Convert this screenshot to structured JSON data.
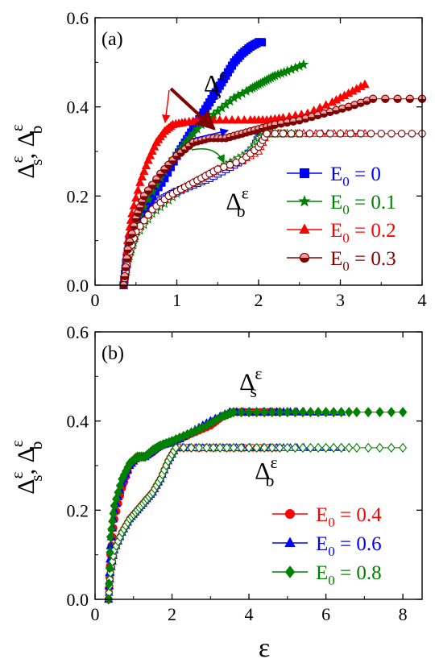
{
  "figure": {
    "x_axis_label": "ε"
  },
  "chart_data": [
    {
      "type": "scatter",
      "panel_label": "(a)",
      "xlim": [
        0,
        4
      ],
      "ylim": [
        0,
        0.6
      ],
      "xticks": [
        0,
        1,
        2,
        3,
        4
      ],
      "yticks": [
        0.0,
        0.2,
        0.4,
        0.6
      ],
      "ytick_labels": [
        "0.0",
        "0.2",
        "0.4",
        "0.6"
      ],
      "ylabel": {
        "main": "Δ",
        "sup1": "ε",
        "sub1": "s",
        "sep": ", ",
        "sup2": "ε",
        "sub2": "b"
      },
      "legend_position": "bottom-right",
      "annotations": [
        {
          "base": "Δ",
          "sub": "s",
          "sup": "ε",
          "x": 1.33,
          "y": 0.435
        },
        {
          "base": "Δ",
          "sub": "b",
          "sup": "ε",
          "x": 1.6,
          "y": 0.17
        }
      ],
      "series": [
        {
          "legend_base": "E",
          "legend_sub": "0",
          "legend_value": " = 0",
          "color": "#0000ff",
          "marker": "square",
          "s_points": [
            [
              0.35,
              0.0
            ],
            [
              0.38,
              0.05
            ],
            [
              0.42,
              0.1
            ],
            [
              0.5,
              0.14
            ],
            [
              0.6,
              0.17
            ],
            [
              0.7,
              0.2
            ],
            [
              0.85,
              0.24
            ],
            [
              1.0,
              0.29
            ],
            [
              1.1,
              0.32
            ],
            [
              1.2,
              0.35
            ],
            [
              1.3,
              0.38
            ],
            [
              1.4,
              0.41
            ],
            [
              1.5,
              0.44
            ],
            [
              1.6,
              0.47
            ],
            [
              1.7,
              0.5
            ],
            [
              1.8,
              0.52
            ],
            [
              1.9,
              0.535
            ],
            [
              2.0,
              0.545
            ],
            [
              2.04,
              0.545
            ]
          ],
          "b_points": [
            [
              0.35,
              0.0
            ],
            [
              0.38,
              0.04
            ],
            [
              0.42,
              0.08
            ],
            [
              0.5,
              0.12
            ],
            [
              0.6,
              0.15
            ],
            [
              0.7,
              0.17
            ],
            [
              0.8,
              0.19
            ],
            [
              0.9,
              0.2
            ],
            [
              1.0,
              0.21
            ],
            [
              1.2,
              0.225
            ],
            [
              1.4,
              0.24
            ],
            [
              1.6,
              0.26
            ],
            [
              1.8,
              0.28
            ],
            [
              1.95,
              0.31
            ],
            [
              2.02,
              0.34
            ],
            [
              2.05,
              0.34
            ]
          ]
        },
        {
          "legend_base": "E",
          "legend_sub": "0",
          "legend_value": " = 0.1",
          "color": "#008000",
          "marker": "star",
          "s_points": [
            [
              0.35,
              0.0
            ],
            [
              0.4,
              0.07
            ],
            [
              0.5,
              0.14
            ],
            [
              0.7,
              0.21
            ],
            [
              0.9,
              0.27
            ],
            [
              1.1,
              0.32
            ],
            [
              1.3,
              0.36
            ],
            [
              1.5,
              0.39
            ],
            [
              1.7,
              0.42
            ],
            [
              1.9,
              0.44
            ],
            [
              2.0,
              0.45
            ],
            [
              2.1,
              0.46
            ],
            [
              2.2,
              0.47
            ],
            [
              2.35,
              0.48
            ],
            [
              2.55,
              0.495
            ]
          ],
          "b_points": [
            [
              0.35,
              0.0
            ],
            [
              0.4,
              0.05
            ],
            [
              0.5,
              0.11
            ],
            [
              0.7,
              0.16
            ],
            [
              0.9,
              0.19
            ],
            [
              1.1,
              0.22
            ],
            [
              1.3,
              0.24
            ],
            [
              1.5,
              0.26
            ],
            [
              1.7,
              0.28
            ],
            [
              1.9,
              0.3
            ],
            [
              2.0,
              0.33
            ],
            [
              2.1,
              0.34
            ],
            [
              2.2,
              0.34
            ],
            [
              2.35,
              0.34
            ],
            [
              2.55,
              0.34
            ]
          ]
        },
        {
          "legend_base": "E",
          "legend_sub": "0",
          "legend_value": " = 0.2",
          "color": "#ff0000",
          "marker": "triangle",
          "s_points": [
            [
              0.35,
              0.0
            ],
            [
              0.4,
              0.1
            ],
            [
              0.45,
              0.16
            ],
            [
              0.55,
              0.23
            ],
            [
              0.65,
              0.28
            ],
            [
              0.75,
              0.32
            ],
            [
              0.85,
              0.345
            ],
            [
              0.95,
              0.36
            ],
            [
              1.1,
              0.365
            ],
            [
              1.3,
              0.37
            ],
            [
              1.6,
              0.37
            ],
            [
              1.9,
              0.37
            ],
            [
              2.1,
              0.37
            ],
            [
              2.3,
              0.375
            ],
            [
              2.6,
              0.385
            ],
            [
              2.9,
              0.41
            ],
            [
              3.1,
              0.43
            ],
            [
              3.3,
              0.45
            ]
          ],
          "b_points": [
            [
              0.35,
              0.0
            ],
            [
              0.4,
              0.06
            ],
            [
              0.5,
              0.12
            ],
            [
              0.7,
              0.17
            ],
            [
              0.9,
              0.2
            ],
            [
              1.1,
              0.22
            ],
            [
              1.3,
              0.24
            ],
            [
              1.5,
              0.26
            ],
            [
              1.8,
              0.28
            ],
            [
              2.0,
              0.3
            ],
            [
              2.1,
              0.34
            ],
            [
              2.4,
              0.34
            ],
            [
              2.7,
              0.34
            ],
            [
              3.0,
              0.34
            ],
            [
              3.3,
              0.34
            ]
          ]
        },
        {
          "legend_base": "E",
          "legend_sub": "0",
          "legend_value": " = 0.3",
          "color": "#800000",
          "marker": "circle-half",
          "s_points": [
            [
              0.35,
              0.0
            ],
            [
              0.4,
              0.08
            ],
            [
              0.5,
              0.15
            ],
            [
              0.6,
              0.2
            ],
            [
              0.8,
              0.25
            ],
            [
              1.0,
              0.29
            ],
            [
              1.2,
              0.32
            ],
            [
              1.4,
              0.33
            ],
            [
              1.6,
              0.33
            ],
            [
              1.8,
              0.34
            ],
            [
              2.0,
              0.35
            ],
            [
              2.2,
              0.36
            ],
            [
              2.5,
              0.37
            ],
            [
              2.8,
              0.385
            ],
            [
              3.1,
              0.4
            ],
            [
              3.4,
              0.418
            ],
            [
              4.0,
              0.418
            ]
          ],
          "b_points": [
            [
              0.35,
              0.0
            ],
            [
              0.4,
              0.06
            ],
            [
              0.5,
              0.12
            ],
            [
              0.7,
              0.17
            ],
            [
              0.9,
              0.2
            ],
            [
              1.1,
              0.22
            ],
            [
              1.3,
              0.24
            ],
            [
              1.5,
              0.26
            ],
            [
              1.8,
              0.28
            ],
            [
              2.0,
              0.31
            ],
            [
              2.1,
              0.34
            ],
            [
              2.5,
              0.34
            ],
            [
              3.0,
              0.34
            ],
            [
              3.5,
              0.34
            ],
            [
              4.0,
              0.34
            ]
          ]
        }
      ]
    },
    {
      "type": "scatter",
      "panel_label": "(b)",
      "xlim": [
        0,
        8.5
      ],
      "ylim": [
        0,
        0.6
      ],
      "xticks": [
        0,
        2,
        4,
        6,
        8
      ],
      "yticks": [
        0.0,
        0.2,
        0.4,
        0.6
      ],
      "ytick_labels": [
        "0.0",
        "0.2",
        "0.4",
        "0.6"
      ],
      "ylabel": {
        "main": "Δ",
        "sup1": "ε",
        "sub1": "s",
        "sep": ", ",
        "sup2": "ε",
        "sub2": "b"
      },
      "legend_position": "bottom-right",
      "annotations": [
        {
          "base": "Δ",
          "sub": "s",
          "sup": "ε",
          "x": 3.75,
          "y": 0.47
        },
        {
          "base": "Δ",
          "sub": "b",
          "sup": "ε",
          "x": 4.15,
          "y": 0.27
        }
      ],
      "series": [
        {
          "legend_base": "E",
          "legend_sub": "0",
          "legend_value": " = 0.4",
          "color": "#ff0000",
          "marker": "circle",
          "s_points": [
            [
              0.35,
              0.0
            ],
            [
              0.4,
              0.1
            ],
            [
              0.5,
              0.18
            ],
            [
              0.7,
              0.25
            ],
            [
              0.9,
              0.3
            ],
            [
              1.1,
              0.32
            ],
            [
              1.3,
              0.32
            ],
            [
              1.5,
              0.33
            ],
            [
              1.7,
              0.345
            ],
            [
              1.9,
              0.35
            ],
            [
              2.2,
              0.36
            ],
            [
              2.6,
              0.375
            ],
            [
              3.0,
              0.39
            ],
            [
              3.3,
              0.41
            ],
            [
              3.6,
              0.42
            ],
            [
              4.0,
              0.42
            ],
            [
              4.4,
              0.42
            ],
            [
              4.8,
              0.42
            ]
          ],
          "b_points": [
            [
              0.35,
              0.0
            ],
            [
              0.4,
              0.06
            ],
            [
              0.5,
              0.11
            ],
            [
              0.7,
              0.15
            ],
            [
              0.9,
              0.18
            ],
            [
              1.1,
              0.2
            ],
            [
              1.3,
              0.22
            ],
            [
              1.5,
              0.24
            ],
            [
              1.7,
              0.27
            ],
            [
              1.9,
              0.31
            ],
            [
              2.1,
              0.34
            ],
            [
              2.5,
              0.34
            ],
            [
              3.0,
              0.34
            ],
            [
              3.5,
              0.34
            ],
            [
              4.0,
              0.34
            ],
            [
              4.4,
              0.34
            ],
            [
              4.8,
              0.34
            ]
          ]
        },
        {
          "legend_base": "E",
          "legend_sub": "0",
          "legend_value": " = 0.6",
          "color": "#0000ff",
          "marker": "triangle",
          "s_points": [
            [
              0.35,
              0.0
            ],
            [
              0.4,
              0.12
            ],
            [
              0.5,
              0.2
            ],
            [
              0.7,
              0.26
            ],
            [
              0.9,
              0.3
            ],
            [
              1.1,
              0.32
            ],
            [
              1.3,
              0.32
            ],
            [
              1.5,
              0.335
            ],
            [
              1.7,
              0.345
            ],
            [
              1.9,
              0.35
            ],
            [
              2.2,
              0.36
            ],
            [
              2.6,
              0.38
            ],
            [
              3.0,
              0.4
            ],
            [
              3.5,
              0.42
            ],
            [
              4.2,
              0.42
            ],
            [
              4.9,
              0.42
            ],
            [
              5.6,
              0.42
            ],
            [
              6.4,
              0.42
            ]
          ],
          "b_points": [
            [
              0.35,
              0.0
            ],
            [
              0.4,
              0.06
            ],
            [
              0.5,
              0.11
            ],
            [
              0.7,
              0.15
            ],
            [
              0.9,
              0.18
            ],
            [
              1.1,
              0.2
            ],
            [
              1.3,
              0.22
            ],
            [
              1.5,
              0.24
            ],
            [
              1.7,
              0.27
            ],
            [
              1.9,
              0.31
            ],
            [
              2.1,
              0.34
            ],
            [
              2.8,
              0.34
            ],
            [
              3.5,
              0.34
            ],
            [
              4.2,
              0.34
            ],
            [
              4.9,
              0.34
            ],
            [
              5.6,
              0.34
            ],
            [
              6.4,
              0.34
            ]
          ]
        },
        {
          "legend_base": "E",
          "legend_sub": "0",
          "legend_value": " = 0.8",
          "color": "#008000",
          "marker": "diamond",
          "s_points": [
            [
              0.35,
              0.0
            ],
            [
              0.4,
              0.14
            ],
            [
              0.5,
              0.21
            ],
            [
              0.7,
              0.27
            ],
            [
              0.9,
              0.305
            ],
            [
              1.1,
              0.32
            ],
            [
              1.3,
              0.32
            ],
            [
              1.5,
              0.335
            ],
            [
              1.7,
              0.345
            ],
            [
              2.0,
              0.355
            ],
            [
              2.4,
              0.37
            ],
            [
              2.8,
              0.385
            ],
            [
              3.3,
              0.41
            ],
            [
              3.6,
              0.42
            ],
            [
              4.4,
              0.42
            ],
            [
              5.2,
              0.42
            ],
            [
              6.0,
              0.42
            ],
            [
              6.8,
              0.42
            ],
            [
              8.0,
              0.42
            ]
          ],
          "b_points": [
            [
              0.35,
              0.0
            ],
            [
              0.4,
              0.06
            ],
            [
              0.5,
              0.11
            ],
            [
              0.7,
              0.15
            ],
            [
              0.9,
              0.18
            ],
            [
              1.1,
              0.2
            ],
            [
              1.3,
              0.22
            ],
            [
              1.5,
              0.24
            ],
            [
              1.7,
              0.27
            ],
            [
              1.9,
              0.31
            ],
            [
              2.1,
              0.34
            ],
            [
              2.9,
              0.34
            ],
            [
              3.6,
              0.34
            ],
            [
              4.4,
              0.34
            ],
            [
              5.2,
              0.34
            ],
            [
              6.0,
              0.34
            ],
            [
              6.8,
              0.34
            ],
            [
              8.0,
              0.34
            ]
          ]
        }
      ]
    }
  ]
}
